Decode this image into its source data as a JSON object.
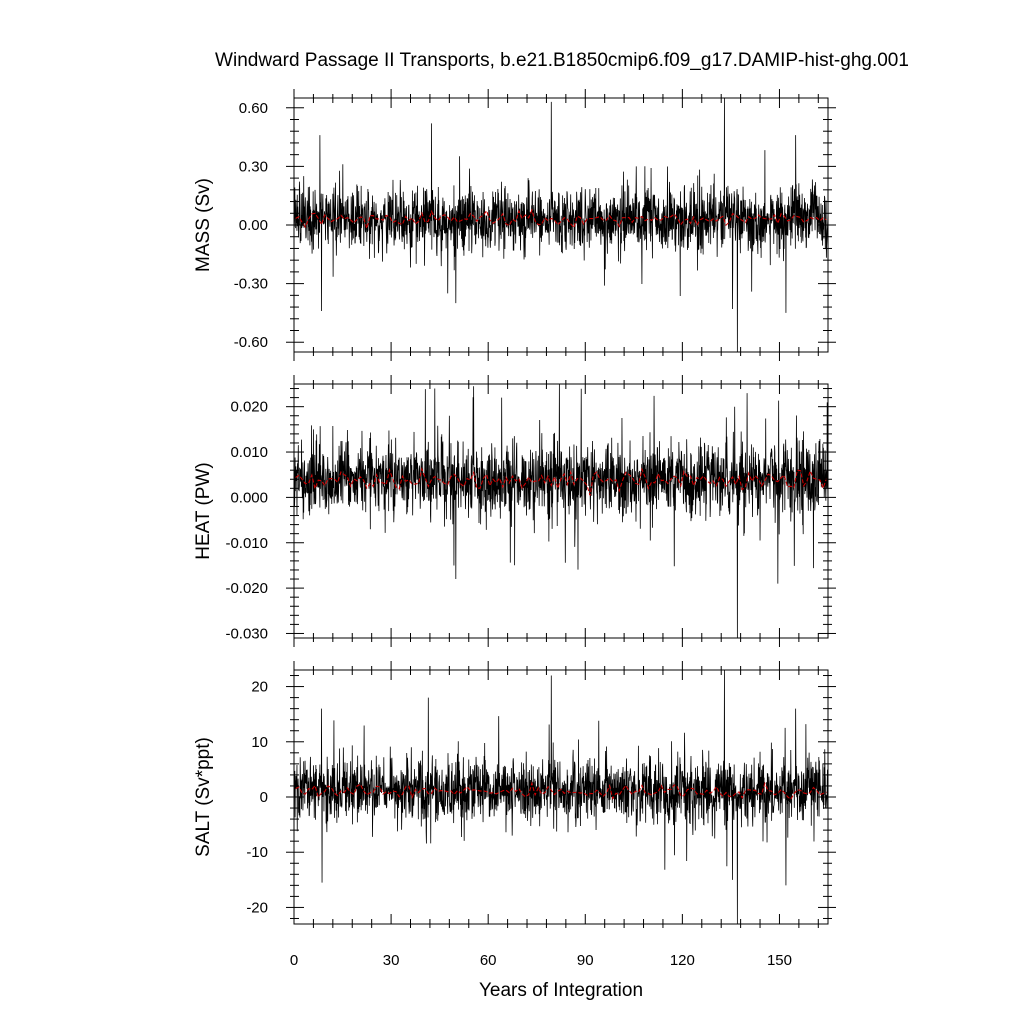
{
  "chart_data": {
    "type": "line",
    "title": "Windward Passage II Transports, b.e21.B1850cmip6.f09_g17.DAMIP-hist-ghg.001",
    "xlabel": "Years of Integration",
    "xlim": [
      0,
      165
    ],
    "xticks": [
      0,
      30,
      60,
      90,
      120,
      150
    ],
    "xtick_labels": [
      "0",
      "30",
      "60",
      "90",
      "120",
      "150"
    ],
    "grid": false,
    "panels": [
      {
        "ylabel": "MASS (Sv)",
        "ylim": [
          -0.65,
          0.65
        ],
        "yticks": [
          -0.6,
          -0.3,
          0.0,
          0.3,
          0.6
        ],
        "ytick_labels": [
          "-0.60",
          "-0.30",
          "0.00",
          "0.30",
          "0.60"
        ],
        "series": [
          {
            "color": "#000000",
            "style": "monthly",
            "mean": 0.03,
            "std": 0.09,
            "spikes": [
              [
                3,
                0.25
              ],
              [
                8,
                0.46
              ],
              [
                8.5,
                -0.44
              ],
              [
                42.5,
                0.52
              ],
              [
                47.5,
                -0.35
              ],
              [
                50,
                -0.4
              ],
              [
                79.5,
                0.63
              ],
              [
                133,
                0.66
              ],
              [
                137,
                -0.65
              ],
              [
                135.5,
                -0.43
              ],
              [
                152,
                -0.45
              ],
              [
                155,
                0.46
              ]
            ]
          },
          {
            "color": "#cc0000",
            "style": "annual",
            "mean": 0.03,
            "amplitude": 0.02
          }
        ]
      },
      {
        "ylabel": "HEAT (PW)",
        "ylim": [
          -0.031,
          0.025
        ],
        "yticks": [
          -0.03,
          -0.02,
          -0.01,
          0.0,
          0.01,
          0.02
        ],
        "ytick_labels": [
          "-0.030",
          "-0.020",
          "-0.010",
          "0.000",
          "0.010",
          "0.020"
        ],
        "series": [
          {
            "color": "#000000",
            "style": "monthly",
            "mean": 0.004,
            "std": 0.0045,
            "spikes": [
              [
                43.5,
                0.024
              ],
              [
                55.5,
                0.0245
              ],
              [
                82,
                0.025
              ],
              [
                50,
                -0.018
              ],
              [
                137,
                -0.031
              ],
              [
                140,
                0.023
              ],
              [
                149.5,
                -0.019
              ],
              [
                48,
                0.018
              ],
              [
                6,
                0.015
              ]
            ]
          },
          {
            "color": "#cc0000",
            "style": "annual",
            "mean": 0.004,
            "amplitude": 0.0015
          }
        ]
      },
      {
        "ylabel": "SALT (Sv*ppt)",
        "ylim": [
          -23,
          23
        ],
        "yticks": [
          -20,
          -10,
          0,
          10,
          20
        ],
        "ytick_labels": [
          "-20",
          "-10",
          "0",
          "10",
          "20"
        ],
        "series": [
          {
            "color": "#000000",
            "style": "monthly",
            "mean": 1.0,
            "std": 3.2,
            "spikes": [
              [
                8.5,
                16
              ],
              [
                8.7,
                -15.5
              ],
              [
                41.5,
                18
              ],
              [
                79.5,
                22
              ],
              [
                133,
                23
              ],
              [
                137,
                -23
              ],
              [
                135.5,
                -15
              ],
              [
                152,
                -16
              ],
              [
                155,
                16
              ]
            ]
          },
          {
            "color": "#cc0000",
            "style": "annual",
            "mean": 1.0,
            "amplitude": 0.8
          }
        ]
      }
    ]
  }
}
